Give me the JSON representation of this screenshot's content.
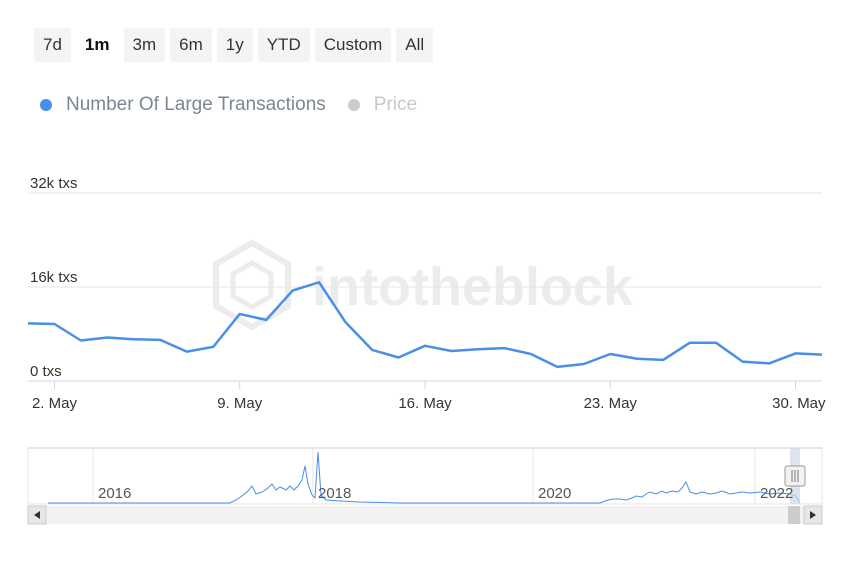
{
  "range_selector": {
    "buttons": [
      "7d",
      "1m",
      "3m",
      "6m",
      "1y",
      "YTD",
      "Custom",
      "All"
    ],
    "active": "1m"
  },
  "legend": {
    "items": [
      {
        "label": "Number Of Large Transactions",
        "color": "#4a8fe7",
        "enabled": true
      },
      {
        "label": "Price",
        "color": "#cccccc",
        "enabled": false
      }
    ]
  },
  "watermark": "intotheblock",
  "chart_data": {
    "type": "line",
    "x": [
      "May 1",
      "May 2",
      "May 3",
      "May 4",
      "May 5",
      "May 6",
      "May 7",
      "May 8",
      "May 9",
      "May 10",
      "May 11",
      "May 12",
      "May 13",
      "May 14",
      "May 15",
      "May 16",
      "May 17",
      "May 18",
      "May 19",
      "May 20",
      "May 21",
      "May 22",
      "May 23",
      "May 24",
      "May 25",
      "May 26",
      "May 27",
      "May 28",
      "May 29",
      "May 30",
      "May 31"
    ],
    "series": [
      {
        "name": "Number Of Large Transactions",
        "color": "#4a8fe7",
        "values": [
          9800,
          9700,
          6900,
          7400,
          7100,
          7000,
          5000,
          5800,
          11400,
          10400,
          15400,
          16800,
          10000,
          5300,
          4000,
          6000,
          5100,
          5400,
          5600,
          4600,
          2400,
          2900,
          4600,
          3800,
          3600,
          6500,
          6500,
          3300,
          3000,
          4700,
          4500
        ]
      }
    ],
    "y_ticks": [
      "0 txs",
      "16k txs",
      "32k txs"
    ],
    "y_tick_values": [
      0,
      16000,
      32000
    ],
    "ylim": [
      0,
      32000
    ],
    "x_ticks": [
      "2. May",
      "9. May",
      "16. May",
      "23. May",
      "30. May"
    ],
    "x_tick_values": [
      "May 2",
      "May 9",
      "May 16",
      "May 23",
      "May 30"
    ],
    "grid": true,
    "legend_position": "top-left"
  },
  "navigator": {
    "labels": [
      "2016",
      "2018",
      "2020",
      "2022"
    ],
    "scroll_left_icon": "arrow-left-icon",
    "scroll_right_icon": "arrow-right-icon",
    "handle_icon": "grip-handle-icon"
  }
}
